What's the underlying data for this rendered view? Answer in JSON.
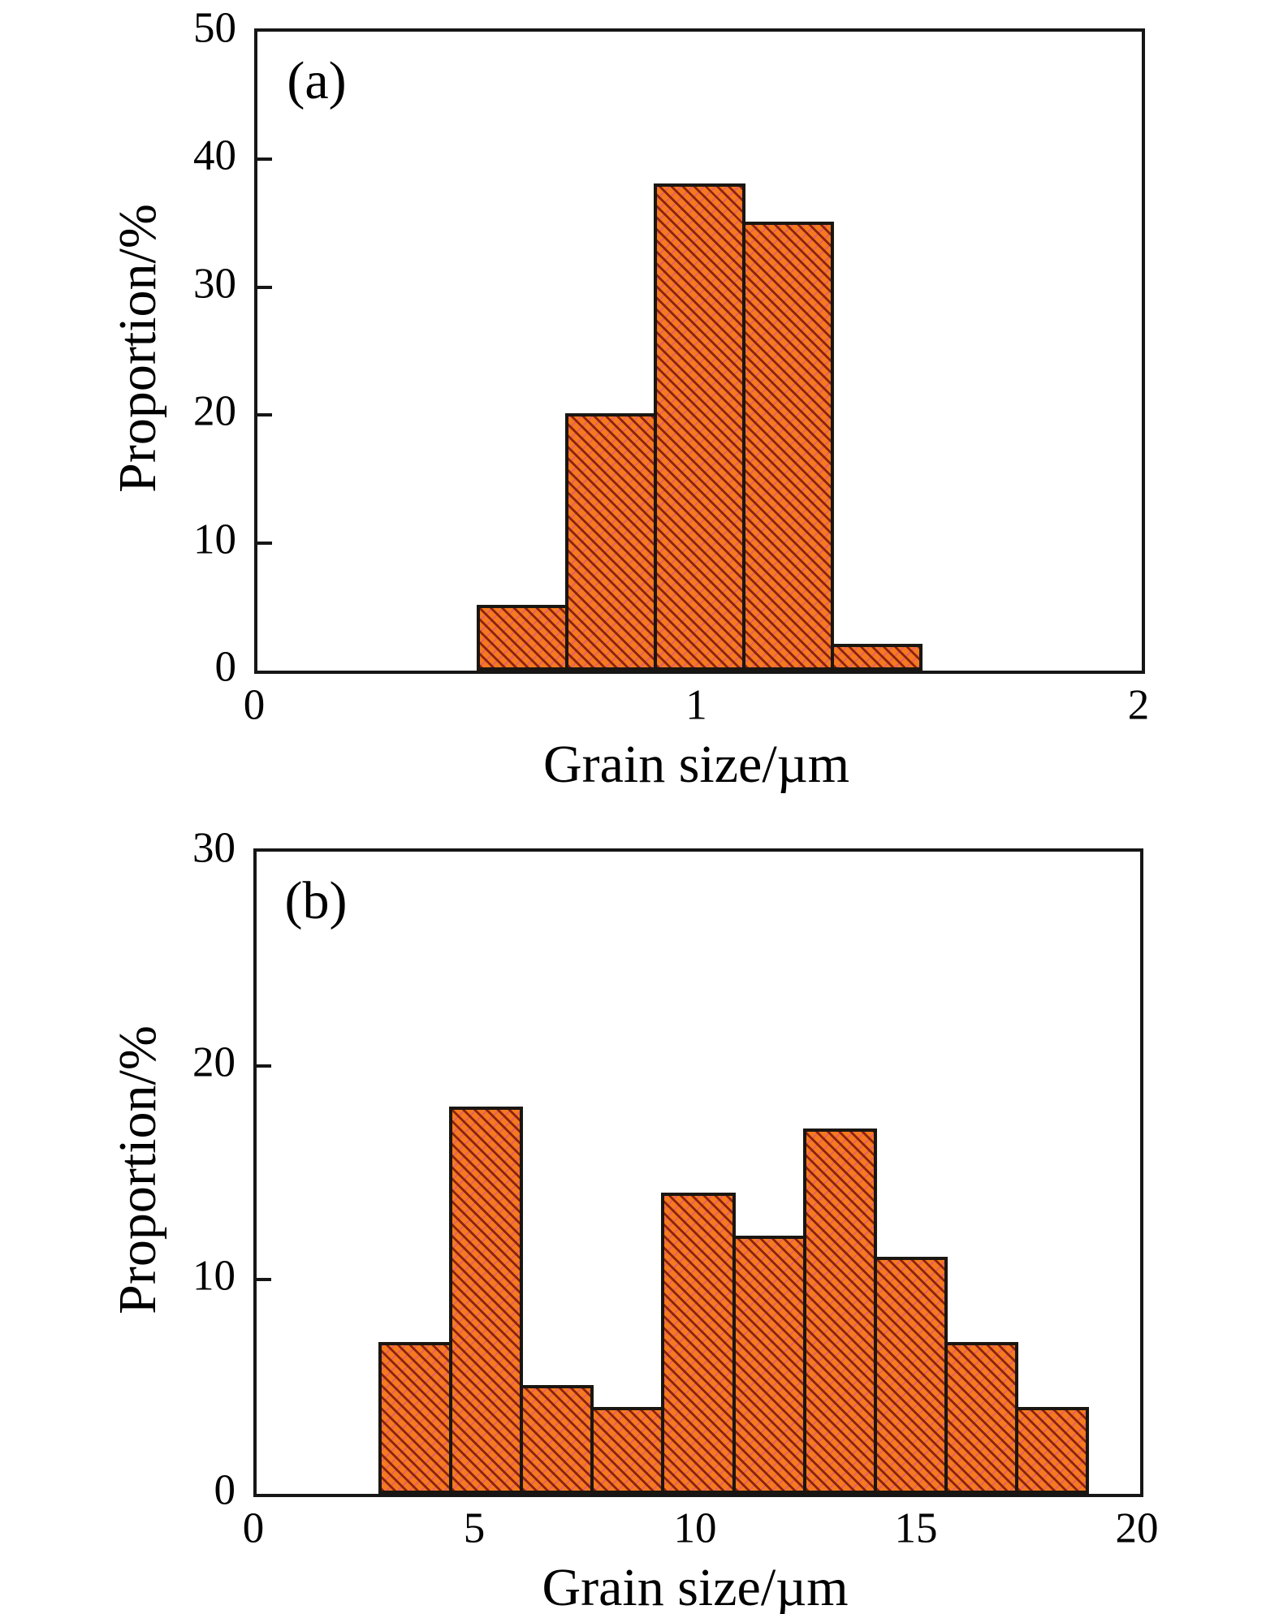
{
  "figure": {
    "background": "#ffffff",
    "text_color": "#000000",
    "axis_color": "#161616",
    "bar_fill": "#f5791e",
    "bar_hatch_dark": "#8c2309",
    "bar_hatch_magenta": "#d844ad",
    "bar_border": "#1a1612"
  },
  "chart_data": [
    {
      "type": "bar",
      "panel_label": "(a)",
      "title": "",
      "xlabel": "Grain size/µm",
      "ylabel": "Proportion/%",
      "xlim": [
        0,
        2
      ],
      "ylim": [
        0,
        50
      ],
      "x_tick_values": [
        0,
        1,
        2
      ],
      "x_tick_labels": [
        "0",
        "1",
        "2"
      ],
      "y_tick_values": [
        0,
        10,
        20,
        30,
        40,
        50
      ],
      "y_tick_labels": [
        "0",
        "10",
        "20",
        "30",
        "40",
        "50"
      ],
      "grid": false,
      "legend": false,
      "bin_width": 0.2,
      "bin_edges": [
        0.5,
        0.7,
        0.9,
        1.1,
        1.3,
        1.5
      ],
      "categories": [
        "0.5-0.7",
        "0.7-0.9",
        "0.9-1.1",
        "1.1-1.3",
        "1.3-1.5"
      ],
      "values": [
        5,
        20,
        38,
        35,
        2
      ]
    },
    {
      "type": "bar",
      "panel_label": "(b)",
      "title": "",
      "xlabel": "Grain size/µm",
      "ylabel": "Proportion/%",
      "xlim": [
        0,
        20
      ],
      "ylim": [
        0,
        30
      ],
      "x_tick_values": [
        0,
        5,
        10,
        15,
        20
      ],
      "x_tick_labels": [
        "0",
        "5",
        "10",
        "15",
        "20"
      ],
      "y_tick_values": [
        0,
        10,
        20,
        30
      ],
      "y_tick_labels": [
        "0",
        "10",
        "20",
        "30"
      ],
      "grid": false,
      "legend": false,
      "bin_width": 1.6,
      "bin_edges": [
        2.8,
        4.4,
        6.0,
        7.6,
        9.2,
        10.8,
        12.4,
        14.0,
        15.6,
        17.2,
        18.8
      ],
      "categories": [
        "2.8-4.4",
        "4.4-6.0",
        "6.0-7.6",
        "7.6-9.2",
        "9.2-10.8",
        "10.8-12.4",
        "12.4-14.0",
        "14.0-15.6",
        "15.6-17.2",
        "17.2-18.8"
      ],
      "values": [
        7,
        18,
        5,
        4,
        14,
        12,
        17,
        11,
        7,
        4
      ]
    }
  ]
}
